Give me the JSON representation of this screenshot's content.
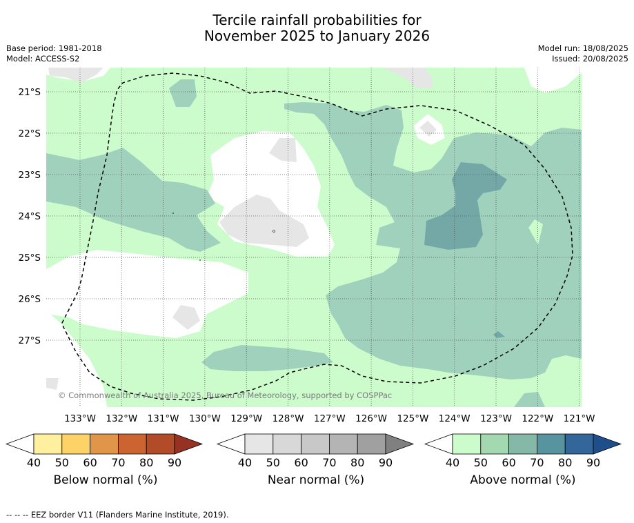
{
  "title": {
    "line1": "Tercile rainfall probabilities for",
    "line2": "November 2025 to January 2026"
  },
  "meta": {
    "base_period": "Base period: 1981-2018",
    "model": "Model: ACCESS-S2",
    "model_run": "Model run: 18/08/2025",
    "issued": "Issued: 20/08/2025"
  },
  "map": {
    "lat_labels": [
      "21°S",
      "22°S",
      "23°S",
      "24°S",
      "25°S",
      "26°S",
      "27°S"
    ],
    "lon_labels": [
      "133°W",
      "132°W",
      "131°W",
      "130°W",
      "129°W",
      "128°W",
      "127°W",
      "126°W",
      "125°W",
      "124°W",
      "123°W",
      "122°W",
      "121°W"
    ],
    "copyright": "© Commonwealth of Australia 2025, Bureau of Meteorology, supported by COSPPac",
    "colors": {
      "above_40": "#ccfccc",
      "above_50": "#9fd1bd",
      "above_60": "#73a8a6",
      "near_40": "#e6e6e6",
      "background": "#ffffff"
    }
  },
  "colorbars": [
    {
      "name": "Below normal (%)",
      "ticks": [
        "40",
        "50",
        "60",
        "70",
        "80",
        "90"
      ],
      "colors": [
        "#fff0a0",
        "#fdd266",
        "#e19548",
        "#cc6431",
        "#b24b28",
        "#963224"
      ]
    },
    {
      "name": "Near normal (%)",
      "ticks": [
        "40",
        "50",
        "60",
        "70",
        "80",
        "90"
      ],
      "colors": [
        "#e6e6e6",
        "#d8d8d8",
        "#c8c8c8",
        "#b4b4b4",
        "#a0a0a0",
        "#808080"
      ]
    },
    {
      "name": "Above normal (%)",
      "ticks": [
        "40",
        "50",
        "60",
        "70",
        "80",
        "90"
      ],
      "colors": [
        "#ccfccc",
        "#a4d8b0",
        "#86b8a8",
        "#5893a0",
        "#336699",
        "#1f4f8a"
      ]
    }
  ],
  "footer": "--  --  -- EEZ border V11 (Flanders Marine Institute, 2019)."
}
